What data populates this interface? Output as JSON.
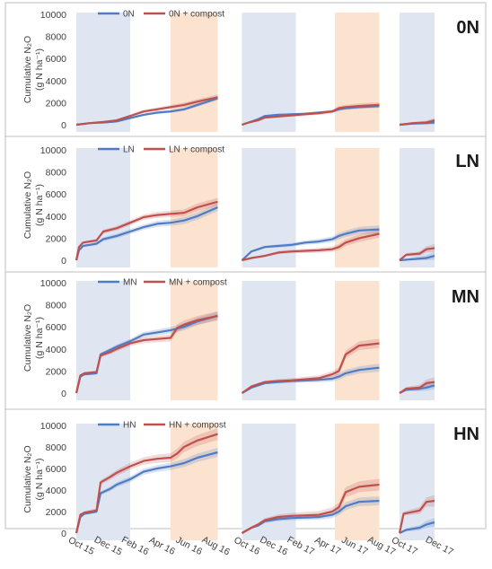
{
  "colors": {
    "nitrogen_line": "#4f7cc2",
    "compost_line": "#c0504d",
    "winter_shade": "#dfe6f2",
    "summer_shade": "#fbe3d0",
    "panel_border": "#bfbfbf"
  },
  "x_axis": {
    "tick_labels": [
      "Oct 15",
      "Dec 15",
      "Feb 16",
      "Apr 16",
      "Jun 16",
      "Aug 16",
      "Oct 16",
      "Dec 16",
      "Feb 17",
      "Apr 17",
      "Jun 17",
      "Aug 17",
      "Oct 17",
      "Dec 17"
    ]
  },
  "chart_data": [
    {
      "type": "line",
      "title": "0N",
      "ylabel_line1": "Cumulative N₂O",
      "ylabel_line2": "(g N ha⁻¹)",
      "ylim": [
        0,
        10000
      ],
      "yticks": [
        0,
        2000,
        4000,
        6000,
        8000,
        10000
      ],
      "legend_position": "top",
      "shaded_periods": [
        {
          "kind": "winter",
          "start": 0,
          "end": 4
        },
        {
          "kind": "summer",
          "start": 7,
          "end": 10.5
        },
        {
          "kind": "winter",
          "start": 12.3,
          "end": 16.3
        },
        {
          "kind": "summer",
          "start": 19.2,
          "end": 22.5
        },
        {
          "kind": "winter",
          "start": 24,
          "end": 26.6
        }
      ],
      "series": [
        {
          "name": "0N",
          "color_key": "nitrogen_line",
          "segments": [
            {
              "x": [
                0,
                1,
                2,
                3,
                4,
                5,
                6,
                7,
                8,
                9,
                10.5
              ],
              "y": [
                0,
                150,
                200,
                300,
                600,
                900,
                1100,
                1200,
                1400,
                1800,
                2400
              ]
            },
            {
              "x": [
                12.3,
                12.8,
                13.5,
                14,
                15,
                16,
                17,
                18,
                19,
                19.5,
                20,
                21,
                22.5
              ],
              "y": [
                0,
                200,
                500,
                800,
                900,
                950,
                1000,
                1100,
                1200,
                1400,
                1500,
                1600,
                1700
              ]
            },
            {
              "x": [
                24,
                25,
                26.6
              ],
              "y": [
                0,
                100,
                200
              ]
            }
          ],
          "band": 150
        },
        {
          "name": "0N + compost",
          "color_key": "compost_line",
          "segments": [
            {
              "x": [
                0,
                1,
                2,
                3,
                4,
                5,
                6,
                7,
                8,
                9,
                10.5
              ],
              "y": [
                0,
                150,
                250,
                400,
                800,
                1200,
                1400,
                1600,
                1800,
                2100,
                2500
              ]
            },
            {
              "x": [
                12.3,
                12.8,
                13.5,
                14,
                15,
                16,
                17,
                18,
                19,
                19.5,
                20,
                21,
                22.5
              ],
              "y": [
                0,
                200,
                400,
                650,
                750,
                850,
                950,
                1050,
                1200,
                1500,
                1600,
                1700,
                1800
              ]
            },
            {
              "x": [
                24,
                25,
                26,
                26.6
              ],
              "y": [
                0,
                150,
                200,
                400
              ]
            }
          ],
          "band": 200
        }
      ]
    },
    {
      "type": "line",
      "title": "LN",
      "ylabel_line1": "Cumulative N₂O",
      "ylabel_line2": "(g N ha⁻¹)",
      "ylim": [
        0,
        10000
      ],
      "yticks": [
        0,
        2000,
        4000,
        6000,
        8000,
        10000
      ],
      "legend_position": "top",
      "shaded_periods": [
        {
          "kind": "winter",
          "start": 0,
          "end": 4
        },
        {
          "kind": "summer",
          "start": 7,
          "end": 10.5
        },
        {
          "kind": "winter",
          "start": 12.3,
          "end": 16.3
        },
        {
          "kind": "summer",
          "start": 19.2,
          "end": 22.5
        },
        {
          "kind": "winter",
          "start": 24,
          "end": 26.6
        }
      ],
      "series": [
        {
          "name": "LN",
          "color_key": "nitrogen_line",
          "segments": [
            {
              "x": [
                0,
                0.2,
                0.5,
                1,
                1.5,
                2,
                3,
                4,
                5,
                6,
                7,
                8,
                9,
                10.5
              ],
              "y": [
                0,
                900,
                1300,
                1400,
                1500,
                1900,
                2200,
                2600,
                3000,
                3300,
                3400,
                3600,
                4000,
                4800
              ]
            },
            {
              "x": [
                12.3,
                13,
                14,
                15,
                16,
                17,
                18,
                19,
                19.5,
                20,
                21,
                22.5
              ],
              "y": [
                0,
                800,
                1200,
                1300,
                1400,
                1600,
                1700,
                1900,
                2200,
                2400,
                2700,
                2800
              ]
            },
            {
              "x": [
                24,
                25,
                26,
                26.6
              ],
              "y": [
                0,
                100,
                200,
                400
              ]
            }
          ],
          "band": 300
        },
        {
          "name": "LN + compost",
          "color_key": "compost_line",
          "segments": [
            {
              "x": [
                0,
                0.2,
                0.5,
                1,
                1.5,
                2,
                3,
                4,
                5,
                6,
                7,
                8,
                9,
                10.5
              ],
              "y": [
                0,
                1200,
                1600,
                1700,
                1800,
                2600,
                2900,
                3400,
                3900,
                4100,
                4200,
                4300,
                4800,
                5300
              ]
            },
            {
              "x": [
                12.3,
                13,
                14,
                15,
                16,
                17,
                18,
                19,
                19.5,
                20,
                21,
                22.5
              ],
              "y": [
                0,
                200,
                400,
                700,
                800,
                850,
                900,
                1000,
                1200,
                1600,
                2000,
                2400
              ]
            },
            {
              "x": [
                24,
                24.5,
                25.5,
                26,
                26.6
              ],
              "y": [
                0,
                500,
                600,
                1000,
                1100
              ]
            }
          ],
          "band": 300
        }
      ]
    },
    {
      "type": "line",
      "title": "MN",
      "ylabel_line1": "Cumulative N₂O",
      "ylabel_line2": "(g N ha⁻¹)",
      "ylim": [
        0,
        10000
      ],
      "yticks": [
        0,
        2000,
        4000,
        6000,
        8000,
        10000
      ],
      "legend_position": "top",
      "shaded_periods": [
        {
          "kind": "winter",
          "start": 0,
          "end": 4
        },
        {
          "kind": "summer",
          "start": 7,
          "end": 10.5
        },
        {
          "kind": "winter",
          "start": 12.3,
          "end": 16.3
        },
        {
          "kind": "summer",
          "start": 19.2,
          "end": 22.5
        },
        {
          "kind": "winter",
          "start": 24,
          "end": 26.6
        }
      ],
      "series": [
        {
          "name": "MN",
          "color_key": "nitrogen_line",
          "segments": [
            {
              "x": [
                0,
                0.3,
                0.6,
                1.5,
                1.8,
                2.5,
                3,
                4,
                5,
                6,
                7,
                8,
                9,
                10.5
              ],
              "y": [
                0,
                1500,
                1700,
                1800,
                3500,
                3900,
                4200,
                4700,
                5300,
                5500,
                5700,
                6000,
                6500,
                7000
              ]
            },
            {
              "x": [
                12.3,
                13,
                14,
                15,
                16,
                17,
                18,
                19,
                19.5,
                20,
                21,
                22.5
              ],
              "y": [
                0,
                500,
                900,
                1000,
                1100,
                1150,
                1200,
                1300,
                1500,
                1800,
                2100,
                2300
              ]
            },
            {
              "x": [
                24,
                24.5,
                25.5,
                26,
                26.6
              ],
              "y": [
                0,
                300,
                400,
                500,
                700
              ]
            }
          ],
          "band": 300
        },
        {
          "name": "MN + compost",
          "color_key": "compost_line",
          "segments": [
            {
              "x": [
                0,
                0.3,
                0.6,
                1.5,
                1.8,
                2.5,
                3,
                4,
                5,
                6,
                7,
                7.5,
                8,
                9,
                10.5
              ],
              "y": [
                0,
                1600,
                1800,
                1900,
                3400,
                3700,
                4000,
                4500,
                4800,
                4900,
                5000,
                5900,
                6200,
                6600,
                7000
              ]
            },
            {
              "x": [
                12.3,
                13,
                14,
                15,
                16,
                17,
                18,
                19,
                19.5,
                20,
                21,
                22.5
              ],
              "y": [
                0,
                600,
                1000,
                1100,
                1150,
                1250,
                1350,
                1700,
                2000,
                3500,
                4300,
                4500
              ]
            },
            {
              "x": [
                24,
                24.5,
                25.5,
                26,
                26.6
              ],
              "y": [
                0,
                400,
                500,
                900,
                1000
              ]
            }
          ],
          "band": 350
        }
      ]
    },
    {
      "type": "line",
      "title": "HN",
      "ylabel_line1": "Cumulative N₂O",
      "ylabel_line2": "(g N ha⁻¹)",
      "ylim": [
        0,
        10000
      ],
      "yticks": [
        0,
        2000,
        4000,
        6000,
        8000,
        10000
      ],
      "legend_position": "top",
      "shaded_periods": [
        {
          "kind": "winter",
          "start": 0,
          "end": 4
        },
        {
          "kind": "summer",
          "start": 7,
          "end": 10.5
        },
        {
          "kind": "winter",
          "start": 12.3,
          "end": 16.3
        },
        {
          "kind": "summer",
          "start": 19.2,
          "end": 22.5
        },
        {
          "kind": "winter",
          "start": 24,
          "end": 26.6
        }
      ],
      "series": [
        {
          "name": "HN",
          "color_key": "nitrogen_line",
          "segments": [
            {
              "x": [
                0,
                0.3,
                0.6,
                1.5,
                1.8,
                2.5,
                3,
                4,
                5,
                6,
                7,
                8,
                9,
                10.5
              ],
              "y": [
                0,
                1500,
                1800,
                2000,
                3700,
                4100,
                4500,
                5000,
                5700,
                6000,
                6200,
                6500,
                7000,
                7500
              ]
            },
            {
              "x": [
                12.3,
                13,
                13.5,
                14,
                15,
                16,
                17,
                18,
                19,
                19.5,
                20,
                21,
                22.5
              ],
              "y": [
                0,
                500,
                700,
                1100,
                1300,
                1400,
                1450,
                1500,
                1700,
                2000,
                2500,
                2900,
                3000
              ]
            },
            {
              "x": [
                24,
                24.5,
                25.5,
                26,
                26.6
              ],
              "y": [
                0,
                300,
                500,
                800,
                1000
              ]
            }
          ],
          "band": 350
        },
        {
          "name": "HN + compost",
          "color_key": "compost_line",
          "segments": [
            {
              "x": [
                0,
                0.3,
                0.6,
                1.5,
                1.8,
                2.5,
                3,
                4,
                5,
                6,
                7,
                7.5,
                8,
                9,
                10.5
              ],
              "y": [
                0,
                1700,
                1900,
                2100,
                4700,
                5200,
                5600,
                6200,
                6700,
                6900,
                7000,
                7400,
                8000,
                8600,
                9200
              ]
            },
            {
              "x": [
                12.3,
                13,
                13.5,
                14,
                15,
                16,
                17,
                18,
                19,
                19.5,
                20,
                21,
                22.5
              ],
              "y": [
                0,
                500,
                800,
                1200,
                1500,
                1600,
                1650,
                1700,
                2000,
                2400,
                3800,
                4300,
                4500
              ]
            },
            {
              "x": [
                24,
                24.3,
                25.5,
                26,
                26.6
              ],
              "y": [
                0,
                1800,
                2100,
                2900,
                3000
              ]
            }
          ],
          "band": 450
        }
      ]
    }
  ]
}
